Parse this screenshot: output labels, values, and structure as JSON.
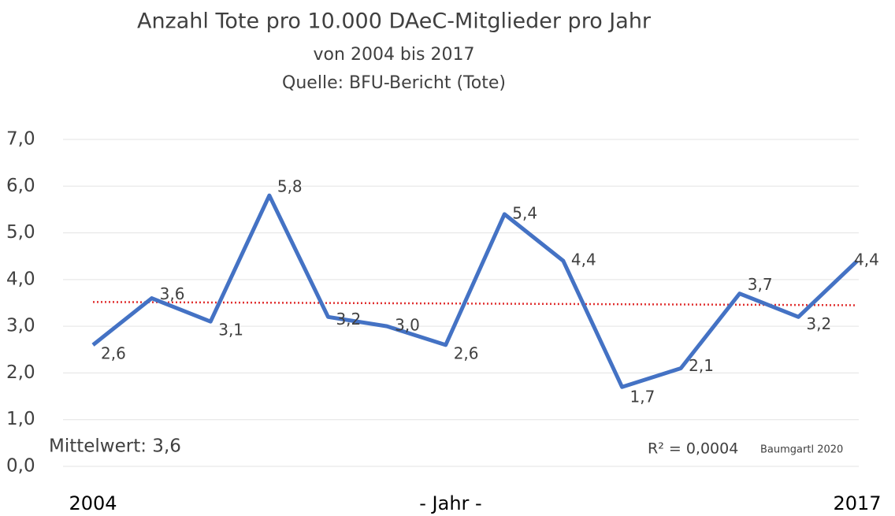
{
  "chart_data": {
    "type": "line",
    "title": "Anzahl Tote pro 10.000 DAeC-Mitglieder pro Jahr",
    "subtitle": [
      "von 2004 bis 2017",
      "Quelle: BFU-Bericht (Tote)"
    ],
    "x_label": "- Jahr -",
    "categories": [
      "2004",
      null,
      null,
      null,
      null,
      null,
      null,
      null,
      null,
      null,
      null,
      null,
      null,
      "2017"
    ],
    "series": [
      {
        "color": "#4472c4",
        "values": [
          2.6,
          3.6,
          3.1,
          5.8,
          3.2,
          3.0,
          2.6,
          5.4,
          4.4,
          1.7,
          2.1,
          3.7,
          3.2,
          4.4
        ],
        "value_labels": [
          "2,6",
          "3,6",
          "3,1",
          "5,8",
          "3,2",
          "3,0",
          "2,6",
          "5,4",
          "4,4",
          "1,7",
          "2,1",
          "3,7",
          "3,2",
          "4,4"
        ]
      }
    ],
    "trend_line": {
      "color": "#e03030",
      "values": [
        3.52,
        3.45
      ]
    },
    "ylim": [
      0,
      7
    ],
    "yticks": [
      {
        "value": 0,
        "label": "0,0"
      },
      {
        "value": 1,
        "label": "1,0"
      },
      {
        "value": 2,
        "label": "2,0"
      },
      {
        "value": 3,
        "label": "3,0"
      },
      {
        "value": 4,
        "label": "4,0"
      },
      {
        "value": 5,
        "label": "5,0"
      },
      {
        "value": 6,
        "label": "6,0"
      },
      {
        "value": 7,
        "label": "7,0"
      }
    ],
    "grid": true,
    "annotations": [
      "Mittelwert: 3,6",
      "R² = 0,0004",
      "Baumgartl 2020"
    ]
  }
}
